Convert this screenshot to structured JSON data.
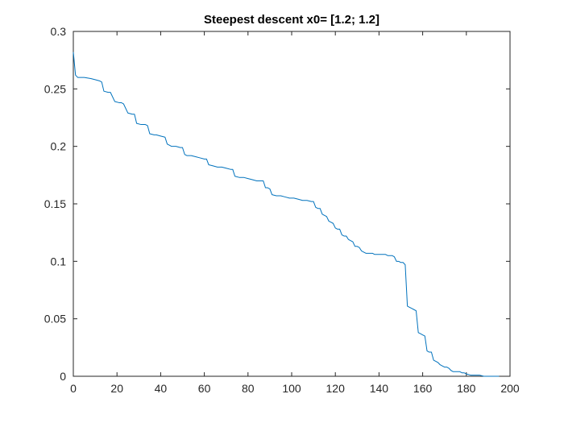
{
  "chart_data": {
    "type": "line",
    "title": "Steepest descent x0= [1.2; 1.2]",
    "xlabel": "",
    "ylabel": "",
    "xlim": [
      0,
      200
    ],
    "ylim": [
      0,
      0.3
    ],
    "xticks": [
      0,
      20,
      40,
      60,
      80,
      100,
      120,
      140,
      160,
      180,
      200
    ],
    "yticks": [
      0,
      0.05,
      0.1,
      0.15,
      0.2,
      0.25,
      0.3
    ],
    "xtick_labels": [
      "0",
      "20",
      "40",
      "60",
      "80",
      "100",
      "120",
      "140",
      "160",
      "180",
      "200"
    ],
    "ytick_labels": [
      "0",
      "0.05",
      "0.1",
      "0.15",
      "0.2",
      "0.25",
      "0.3"
    ],
    "grid": false,
    "legend": "none",
    "colors": {
      "line": "#0072bd",
      "axes": "#262626"
    },
    "series": [
      {
        "x": [
          0,
          1,
          2,
          5,
          8,
          10,
          12,
          13,
          14,
          16,
          17,
          19,
          21,
          22,
          23,
          25,
          27,
          28,
          29,
          31,
          33,
          34,
          35,
          37,
          38,
          40,
          42,
          43,
          44,
          45,
          47,
          49,
          50,
          51,
          52,
          54,
          56,
          58,
          60,
          61,
          62,
          64,
          66,
          68,
          70,
          72,
          73,
          74,
          76,
          78,
          80,
          82,
          84,
          86,
          87,
          88,
          89,
          90,
          91,
          93,
          95,
          97,
          99,
          101,
          103,
          105,
          107,
          109,
          110,
          111,
          112,
          113,
          114,
          115,
          116,
          117,
          118,
          119,
          120,
          121,
          122,
          123,
          124,
          125,
          126,
          127,
          128,
          129,
          130,
          131,
          132,
          133,
          134,
          135,
          136,
          137,
          138,
          139,
          140,
          141,
          142,
          143,
          144,
          145,
          146,
          147,
          148,
          149,
          150,
          151,
          152,
          153,
          154,
          155,
          156,
          157,
          158,
          159,
          160,
          161,
          162,
          163,
          164,
          165,
          166,
          167,
          168,
          169,
          170,
          171,
          172,
          173,
          174,
          175,
          176,
          177,
          178,
          179,
          180,
          182,
          184,
          186,
          188,
          190,
          192,
          195
        ],
        "y": [
          0.282,
          0.262,
          0.26,
          0.26,
          0.259,
          0.258,
          0.257,
          0.256,
          0.248,
          0.247,
          0.247,
          0.239,
          0.238,
          0.238,
          0.237,
          0.229,
          0.228,
          0.228,
          0.22,
          0.219,
          0.219,
          0.218,
          0.211,
          0.21,
          0.21,
          0.209,
          0.208,
          0.202,
          0.201,
          0.2,
          0.2,
          0.199,
          0.199,
          0.193,
          0.192,
          0.192,
          0.191,
          0.19,
          0.189,
          0.189,
          0.184,
          0.183,
          0.182,
          0.182,
          0.181,
          0.18,
          0.18,
          0.174,
          0.173,
          0.173,
          0.172,
          0.171,
          0.17,
          0.17,
          0.17,
          0.164,
          0.164,
          0.163,
          0.158,
          0.157,
          0.157,
          0.156,
          0.155,
          0.155,
          0.154,
          0.153,
          0.153,
          0.152,
          0.152,
          0.147,
          0.146,
          0.146,
          0.141,
          0.14,
          0.139,
          0.135,
          0.134,
          0.133,
          0.129,
          0.128,
          0.128,
          0.123,
          0.122,
          0.122,
          0.119,
          0.118,
          0.117,
          0.113,
          0.113,
          0.112,
          0.109,
          0.108,
          0.107,
          0.107,
          0.107,
          0.107,
          0.106,
          0.106,
          0.106,
          0.106,
          0.106,
          0.106,
          0.105,
          0.105,
          0.105,
          0.104,
          0.1,
          0.1,
          0.099,
          0.099,
          0.097,
          0.061,
          0.06,
          0.059,
          0.058,
          0.057,
          0.038,
          0.037,
          0.036,
          0.035,
          0.022,
          0.021,
          0.021,
          0.014,
          0.013,
          0.012,
          0.01,
          0.009,
          0.008,
          0.008,
          0.007,
          0.005,
          0.004,
          0.004,
          0.004,
          0.004,
          0.003,
          0.003,
          0.002,
          0.001,
          0.001,
          0.001,
          0.0,
          0.0,
          0.0,
          0.0
        ]
      }
    ]
  }
}
